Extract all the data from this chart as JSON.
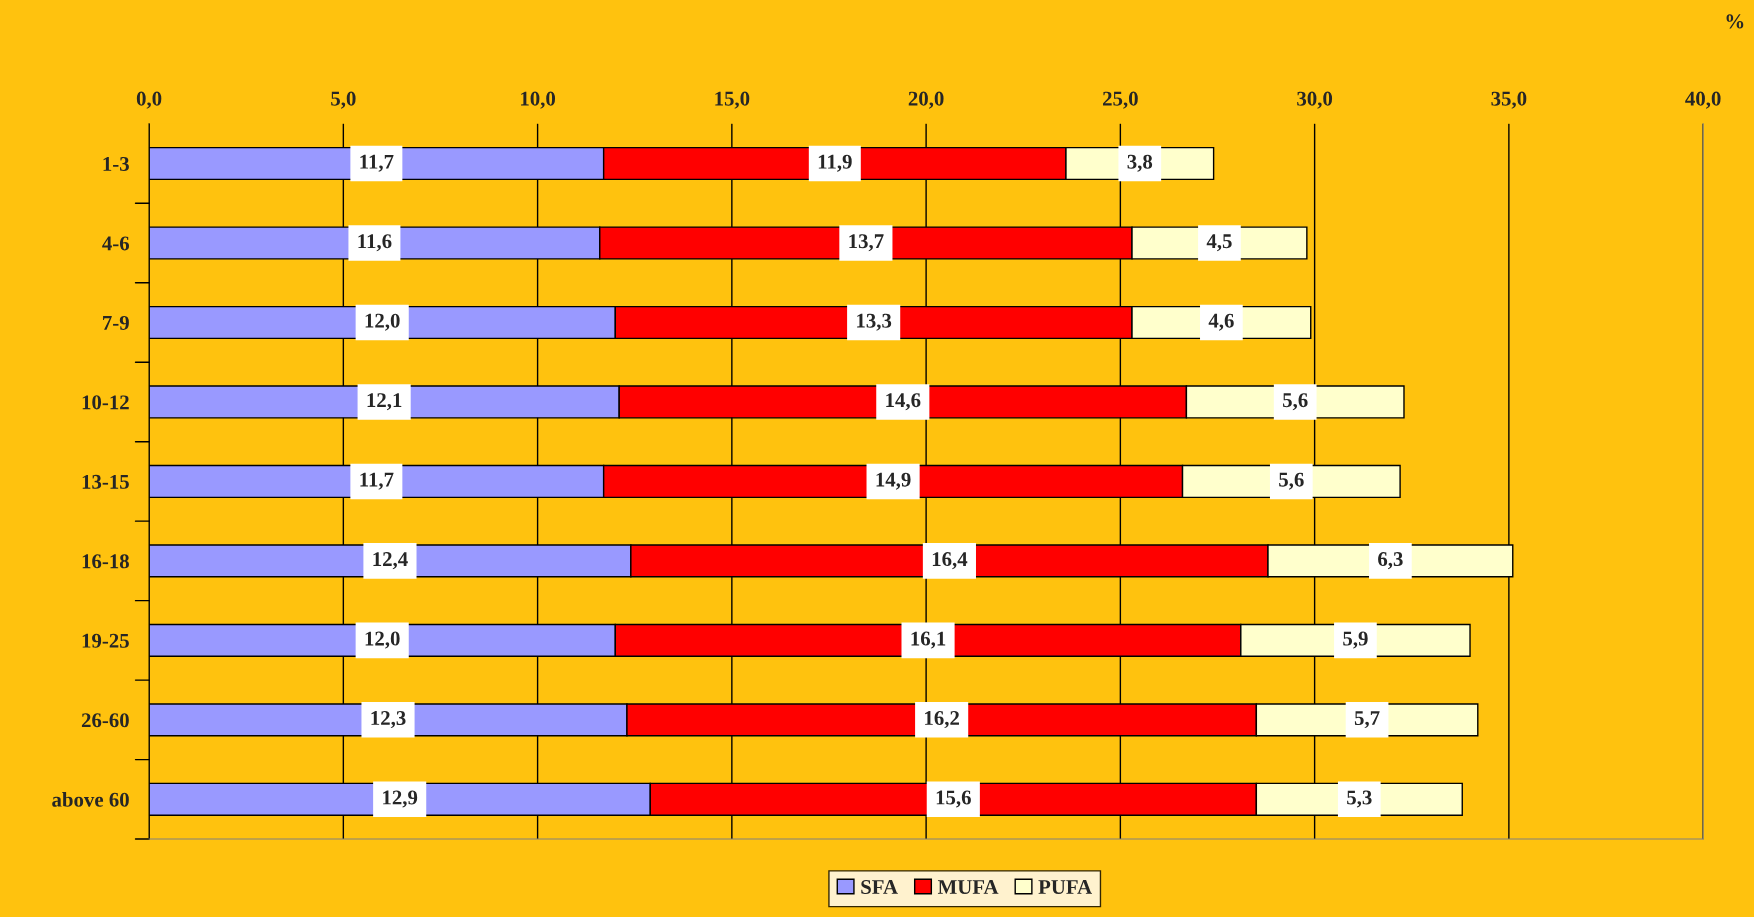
{
  "chart_data": {
    "type": "bar",
    "orientation": "horizontal",
    "stacked": true,
    "annotations": [
      "%"
    ],
    "categories": [
      "1-3",
      "4-6",
      "7-9",
      "10-12",
      "13-15",
      "16-18",
      "19-25",
      "26-60",
      "above 60"
    ],
    "series": [
      {
        "name": "SFA",
        "color": "#9999ff",
        "values": [
          11.7,
          11.6,
          12.0,
          12.1,
          11.7,
          12.4,
          12.0,
          12.3,
          12.9
        ],
        "value_labels": [
          "11,7",
          "11,6",
          "12,0",
          "12,1",
          "11,7",
          "12,4",
          "12,0",
          "12,3",
          "12,9"
        ]
      },
      {
        "name": "MUFA",
        "color": "#ff0000",
        "values": [
          11.9,
          13.7,
          13.3,
          14.6,
          14.9,
          16.4,
          16.1,
          16.2,
          15.6
        ],
        "value_labels": [
          "11,9",
          "13,7",
          "13,3",
          "14,6",
          "14,9",
          "16,4",
          "16,1",
          "16,2",
          "15,6"
        ]
      },
      {
        "name": "PUFA",
        "color": "#ffffcc",
        "values": [
          3.8,
          4.5,
          4.6,
          5.6,
          5.6,
          6.3,
          5.9,
          5.7,
          5.3
        ],
        "value_labels": [
          "3,8",
          "4,5",
          "4,6",
          "5,6",
          "5,6",
          "6,3",
          "5,9",
          "5,7",
          "5,3"
        ]
      }
    ],
    "xlim": [
      0,
      40
    ],
    "xticks": [
      {
        "value": 0,
        "label": "0,0"
      },
      {
        "value": 5,
        "label": "5,0"
      },
      {
        "value": 10,
        "label": "10,0"
      },
      {
        "value": 15,
        "label": "15,0"
      },
      {
        "value": 20,
        "label": "20,0"
      },
      {
        "value": 25,
        "label": "25,0"
      },
      {
        "value": 30,
        "label": "30,0"
      },
      {
        "value": 35,
        "label": "35,0"
      },
      {
        "value": 40,
        "label": "40,0"
      }
    ],
    "grid": "x",
    "legend": "bottom"
  }
}
